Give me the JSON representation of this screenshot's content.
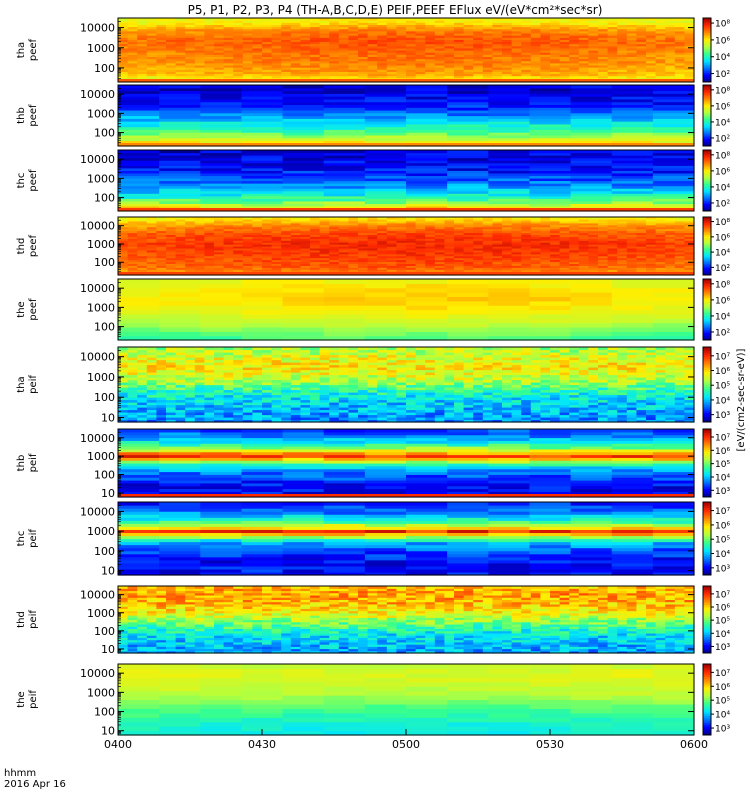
{
  "title": "P5, P1, P2, P3, P4 (TH-A,B,C,D,E) PEIF,PEEF EFlux eV/(eV*cm²*sec*sr)",
  "colorbar_unit": "[eV/(cm2-sec-sr-eV)]",
  "colormap": [
    "#00007f",
    "#0000ff",
    "#0077ff",
    "#00e5ff",
    "#35ff8f",
    "#b2ff3f",
    "#ffee00",
    "#ff8800",
    "#ff2a00",
    "#a00000"
  ],
  "xaxis": {
    "label_line1": "hhmm",
    "label_line2": "2016 Apr 16",
    "start": "0400",
    "end": "0600",
    "ticks": [
      "0400",
      "0430",
      "0500",
      "0530",
      "0600"
    ],
    "tick_minutes": [
      0,
      30,
      60,
      90,
      120
    ]
  },
  "chart_data": {
    "type": "heatmap",
    "x_range_minutes": [
      0,
      120
    ],
    "y_scale": "log",
    "panels": [
      {
        "name_line1": "tha",
        "name_line2": "peef",
        "ylim": [
          20,
          30000
        ],
        "yticks": [
          "10000",
          "1000",
          "100"
        ],
        "ytick_values": [
          10000,
          1000,
          100
        ],
        "cbar_ticks": [
          "10⁸",
          "10⁶",
          "10⁴",
          "10²"
        ],
        "cbar_tick_exp": [
          8,
          6,
          4,
          2
        ],
        "cbar_exp_range": [
          1,
          8.6
        ],
        "profile": [
          [
            20,
            0.55
          ],
          [
            30,
            0.62
          ],
          [
            50,
            0.7
          ],
          [
            150,
            0.74
          ],
          [
            600,
            0.77
          ],
          [
            2500,
            0.8
          ],
          [
            8000,
            0.74
          ],
          [
            20000,
            0.62
          ]
        ],
        "trend": 0.05,
        "noise": 0.04,
        "rows": 30,
        "cols": 60,
        "bottom_band": "#ff5a00"
      },
      {
        "name_line1": "thb",
        "name_line2": "peef",
        "ylim": [
          20,
          30000
        ],
        "yticks": [
          "10000",
          "1000",
          "100"
        ],
        "ytick_values": [
          10000,
          1000,
          100
        ],
        "cbar_ticks": [
          "10⁸",
          "10⁶",
          "10⁴",
          "10²"
        ],
        "cbar_tick_exp": [
          8,
          6,
          4,
          2
        ],
        "cbar_exp_range": [
          1,
          8.6
        ],
        "profile": [
          [
            20,
            0.72
          ],
          [
            40,
            0.62
          ],
          [
            80,
            0.5
          ],
          [
            180,
            0.4
          ],
          [
            500,
            0.3
          ],
          [
            1500,
            0.18
          ],
          [
            4000,
            0.12
          ],
          [
            15000,
            0.08
          ]
        ],
        "trend": 0,
        "noise": 0.06,
        "rows": 22,
        "cols": 14,
        "bottom_band": "#ff8800"
      },
      {
        "name_line1": "thc",
        "name_line2": "peef",
        "ylim": [
          20,
          30000
        ],
        "yticks": [
          "10000",
          "1000",
          "100"
        ],
        "ytick_values": [
          10000,
          1000,
          100
        ],
        "cbar_ticks": [
          "10⁸",
          "10⁶",
          "10⁴",
          "10²"
        ],
        "cbar_tick_exp": [
          8,
          6,
          4,
          2
        ],
        "cbar_exp_range": [
          1,
          8.6
        ],
        "profile": [
          [
            20,
            0.78
          ],
          [
            40,
            0.6
          ],
          [
            80,
            0.45
          ],
          [
            200,
            0.32
          ],
          [
            800,
            0.2
          ],
          [
            3000,
            0.12
          ],
          [
            15000,
            0.08
          ]
        ],
        "trend": 0,
        "noise": 0.07,
        "rows": 24,
        "cols": 14,
        "bottom_band": "#ff3a00"
      },
      {
        "name_line1": "thd",
        "name_line2": "peef",
        "ylim": [
          20,
          30000
        ],
        "yticks": [
          "10000",
          "1000",
          "100"
        ],
        "ytick_values": [
          10000,
          1000,
          100
        ],
        "cbar_ticks": [
          "10⁸",
          "10⁶",
          "10⁴",
          "10²"
        ],
        "cbar_tick_exp": [
          8,
          6,
          4,
          2
        ],
        "cbar_exp_range": [
          1,
          8.6
        ],
        "profile": [
          [
            20,
            0.72
          ],
          [
            60,
            0.8
          ],
          [
            300,
            0.84
          ],
          [
            1000,
            0.86
          ],
          [
            4000,
            0.82
          ],
          [
            12000,
            0.74
          ],
          [
            25000,
            0.64
          ]
        ],
        "trend": 0.04,
        "noise": 0.04,
        "rows": 30,
        "cols": 60,
        "bottom_band": "#ff4000"
      },
      {
        "name_line1": "the",
        "name_line2": "peef",
        "ylim": [
          20,
          30000
        ],
        "yticks": [
          "10000",
          "1000",
          "100"
        ],
        "ytick_values": [
          10000,
          1000,
          100
        ],
        "cbar_ticks": [
          "10⁸",
          "10⁶",
          "10⁴",
          "10²"
        ],
        "cbar_tick_exp": [
          8,
          6,
          4,
          2
        ],
        "cbar_exp_range": [
          1,
          8.6
        ],
        "profile": [
          [
            20,
            0.4
          ],
          [
            60,
            0.48
          ],
          [
            200,
            0.56
          ],
          [
            800,
            0.62
          ],
          [
            3000,
            0.66
          ],
          [
            10000,
            0.64
          ],
          [
            25000,
            0.6
          ]
        ],
        "trend": 0.05,
        "noise": 0.025,
        "rows": 14,
        "cols": 14,
        "bottom_band": "#ffffff"
      },
      {
        "name_line1": "tha",
        "name_line2": "peif",
        "ylim": [
          6,
          30000
        ],
        "yticks": [
          "10000",
          "1000",
          "100",
          "10"
        ],
        "ytick_values": [
          10000,
          1000,
          100,
          10
        ],
        "cbar_ticks": [
          "10⁷",
          "10⁶",
          "10⁵",
          "10⁴",
          "10³"
        ],
        "cbar_tick_exp": [
          7,
          6,
          5,
          4,
          3
        ],
        "cbar_exp_range": [
          2.5,
          7.6
        ],
        "profile": [
          [
            6,
            0.24
          ],
          [
            20,
            0.28
          ],
          [
            60,
            0.32
          ],
          [
            200,
            0.4
          ],
          [
            800,
            0.58
          ],
          [
            3000,
            0.66
          ],
          [
            10000,
            0.62
          ],
          [
            25000,
            0.55
          ]
        ],
        "trend": 0,
        "noise": 0.1,
        "rows": 30,
        "cols": 60,
        "bottom_band": "#ffffff"
      },
      {
        "name_line1": "thb",
        "name_line2": "peif",
        "ylim": [
          6,
          30000
        ],
        "yticks": [
          "10000",
          "1000",
          "100",
          "10"
        ],
        "ytick_values": [
          10000,
          1000,
          100,
          10
        ],
        "cbar_ticks": [
          "10⁷",
          "10⁶",
          "10⁵",
          "10⁴",
          "10³"
        ],
        "cbar_tick_exp": [
          7,
          6,
          5,
          4,
          3
        ],
        "cbar_exp_range": [
          2.5,
          7.6
        ],
        "profile": [
          [
            6,
            0.1
          ],
          [
            30,
            0.12
          ],
          [
            100,
            0.2
          ],
          [
            300,
            0.32
          ],
          [
            700,
            0.7
          ],
          [
            1100,
            0.9
          ],
          [
            1600,
            0.72
          ],
          [
            3000,
            0.5
          ],
          [
            8000,
            0.3
          ],
          [
            25000,
            0.18
          ]
        ],
        "trend": 0,
        "noise": 0.07,
        "rows": 24,
        "cols": 14,
        "bottom_band": "#ff2a00"
      },
      {
        "name_line1": "thc",
        "name_line2": "peif",
        "ylim": [
          6,
          30000
        ],
        "yticks": [
          "10000",
          "1000",
          "100",
          "10"
        ],
        "ytick_values": [
          10000,
          1000,
          100,
          10
        ],
        "cbar_ticks": [
          "10⁷",
          "10⁶",
          "10⁵",
          "10⁴",
          "10³"
        ],
        "cbar_tick_exp": [
          7,
          6,
          5,
          4,
          3
        ],
        "cbar_exp_range": [
          2.5,
          7.6
        ],
        "profile": [
          [
            6,
            0.12
          ],
          [
            30,
            0.12
          ],
          [
            100,
            0.18
          ],
          [
            300,
            0.3
          ],
          [
            700,
            0.72
          ],
          [
            1000,
            0.9
          ],
          [
            1500,
            0.7
          ],
          [
            3000,
            0.45
          ],
          [
            8000,
            0.25
          ],
          [
            25000,
            0.15
          ]
        ],
        "trend": 0,
        "noise": 0.07,
        "rows": 24,
        "cols": 14,
        "bottom_band": "#ffffff"
      },
      {
        "name_line1": "thd",
        "name_line2": "peif",
        "ylim": [
          6,
          30000
        ],
        "yticks": [
          "10000",
          "1000",
          "100",
          "10"
        ],
        "ytick_values": [
          10000,
          1000,
          100,
          10
        ],
        "cbar_ticks": [
          "10⁷",
          "10⁶",
          "10⁵",
          "10⁴",
          "10³"
        ],
        "cbar_tick_exp": [
          7,
          6,
          5,
          4,
          3
        ],
        "cbar_exp_range": [
          2.5,
          7.6
        ],
        "profile": [
          [
            6,
            0.26
          ],
          [
            20,
            0.3
          ],
          [
            60,
            0.34
          ],
          [
            200,
            0.45
          ],
          [
            800,
            0.62
          ],
          [
            3000,
            0.72
          ],
          [
            10000,
            0.76
          ],
          [
            25000,
            0.72
          ]
        ],
        "trend": 0,
        "noise": 0.1,
        "rows": 30,
        "cols": 60,
        "bottom_band": "#ffffff"
      },
      {
        "name_line1": "the",
        "name_line2": "peif",
        "ylim": [
          6,
          30000
        ],
        "yticks": [
          "10000",
          "1000",
          "100",
          "10"
        ],
        "ytick_values": [
          10000,
          1000,
          100,
          10
        ],
        "cbar_ticks": [
          "10⁷",
          "10⁶",
          "10⁵",
          "10⁴",
          "10³"
        ],
        "cbar_tick_exp": [
          7,
          6,
          5,
          4,
          3
        ],
        "cbar_exp_range": [
          2.5,
          7.6
        ],
        "profile": [
          [
            6,
            0.38
          ],
          [
            20,
            0.4
          ],
          [
            60,
            0.44
          ],
          [
            200,
            0.5
          ],
          [
            800,
            0.58
          ],
          [
            3000,
            0.62
          ],
          [
            10000,
            0.64
          ],
          [
            25000,
            0.6
          ]
        ],
        "trend": -0.03,
        "noise": 0.025,
        "rows": 16,
        "cols": 14,
        "bottom_band": "#ffffff"
      }
    ]
  }
}
